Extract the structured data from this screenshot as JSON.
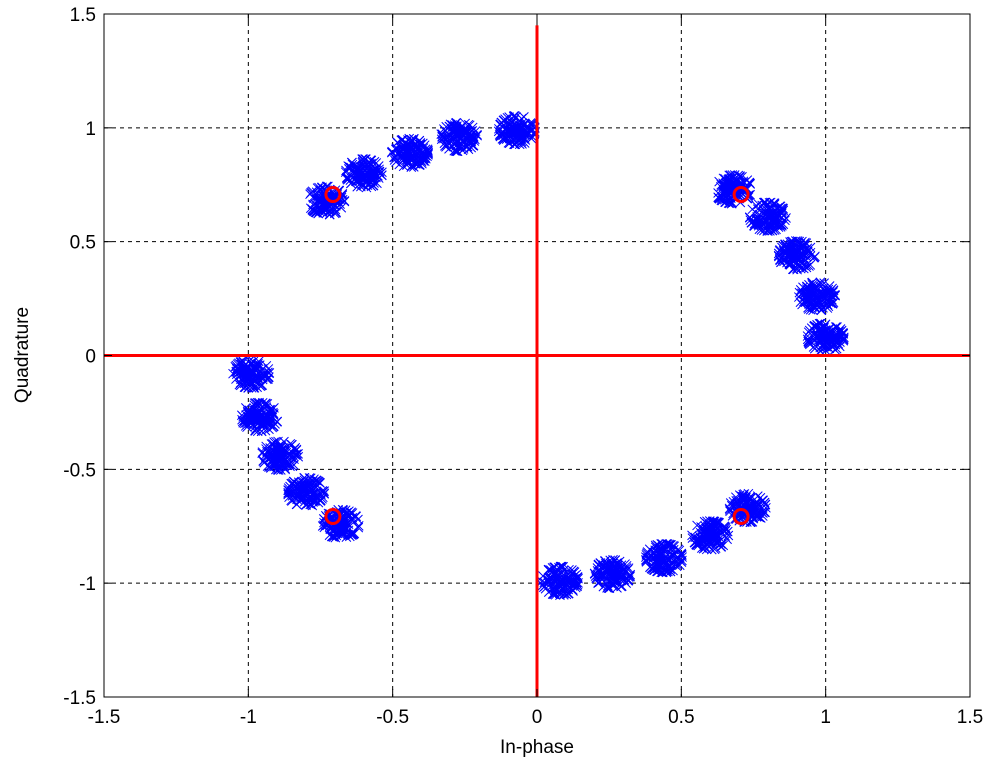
{
  "chart_data": {
    "type": "scatter",
    "title": "",
    "xlabel": "In-phase",
    "ylabel": "Quadrature",
    "xlim": [
      -1.5,
      1.5
    ],
    "ylim": [
      -1.5,
      1.5
    ],
    "xticks": [
      -1.5,
      -1,
      -0.5,
      0,
      0.5,
      1,
      1.5
    ],
    "yticks": [
      -1.5,
      -1,
      -0.5,
      0,
      0.5,
      1,
      1.5
    ],
    "xtick_labels": [
      "-1.5",
      "-1",
      "-0.5",
      "0",
      "0.5",
      "1",
      "1.5"
    ],
    "ytick_labels": [
      "-1.5",
      "-1",
      "-0.5",
      "0",
      "0.5",
      "1",
      "1.5"
    ],
    "grid": true,
    "axes_lines": {
      "color": "#ff0000",
      "x": 0,
      "y": 0
    },
    "series": [
      {
        "marker": "x",
        "color": "#0000ff",
        "cluster_spread": 0.035,
        "cluster_centers": [
          [
            -0.07,
            0.99
          ],
          [
            -0.27,
            0.96
          ],
          [
            -0.44,
            0.89
          ],
          [
            -0.6,
            0.8
          ],
          [
            -0.73,
            0.68
          ],
          [
            1.0,
            0.08
          ],
          [
            0.97,
            0.26
          ],
          [
            0.9,
            0.44
          ],
          [
            0.8,
            0.61
          ],
          [
            0.68,
            0.73
          ],
          [
            0.08,
            -0.99
          ],
          [
            0.26,
            -0.96
          ],
          [
            0.44,
            -0.89
          ],
          [
            0.6,
            -0.79
          ],
          [
            0.73,
            -0.67
          ],
          [
            -0.99,
            -0.08
          ],
          [
            -0.96,
            -0.27
          ],
          [
            -0.89,
            -0.44
          ],
          [
            -0.8,
            -0.6
          ],
          [
            -0.68,
            -0.74
          ]
        ]
      },
      {
        "marker": "o",
        "color": "#ff0000",
        "points": [
          [
            -0.707,
            0.707
          ],
          [
            0.707,
            0.707
          ],
          [
            0.707,
            -0.707
          ],
          [
            -0.707,
            -0.707
          ]
        ]
      }
    ]
  }
}
